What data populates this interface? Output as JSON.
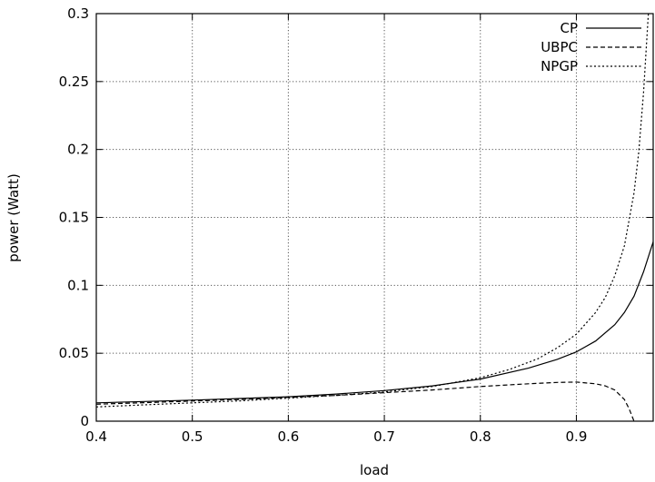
{
  "chart_data": {
    "type": "line",
    "title": "",
    "xlabel": "load",
    "ylabel": "power (Watt)",
    "xlim": [
      0.4,
      0.98
    ],
    "ylim": [
      0,
      0.3
    ],
    "xticks": [
      0.4,
      0.5,
      0.6,
      0.7,
      0.8,
      0.9
    ],
    "xtick_labels": [
      "0.4",
      "0.5",
      "0.6",
      "0.7",
      "0.8",
      "0.9"
    ],
    "yticks": [
      0,
      0.05,
      0.1,
      0.15,
      0.2,
      0.25,
      0.3
    ],
    "ytick_labels": [
      "0",
      "0.05",
      "0.1",
      "0.15",
      "0.2",
      "0.25",
      "0.3"
    ],
    "grid": true,
    "legend_position": "top-right",
    "series": [
      {
        "name": "CP",
        "style": "solid",
        "x": [
          0.4,
          0.45,
          0.5,
          0.55,
          0.6,
          0.65,
          0.7,
          0.75,
          0.8,
          0.85,
          0.88,
          0.9,
          0.92,
          0.94,
          0.95,
          0.96,
          0.97,
          0.98
        ],
        "y": [
          0.0135,
          0.0145,
          0.0155,
          0.0167,
          0.018,
          0.02,
          0.0225,
          0.026,
          0.031,
          0.039,
          0.0455,
          0.051,
          0.059,
          0.071,
          0.08,
          0.092,
          0.11,
          0.132
        ]
      },
      {
        "name": "UBPC",
        "style": "dashed",
        "x": [
          0.4,
          0.45,
          0.5,
          0.55,
          0.6,
          0.65,
          0.7,
          0.75,
          0.8,
          0.85,
          0.88,
          0.9,
          0.92,
          0.93,
          0.94,
          0.95,
          0.955,
          0.96
        ],
        "y": [
          0.0125,
          0.0136,
          0.0148,
          0.016,
          0.0175,
          0.019,
          0.021,
          0.023,
          0.0255,
          0.0275,
          0.0285,
          0.0288,
          0.0275,
          0.026,
          0.023,
          0.016,
          0.009,
          0.0
        ]
      },
      {
        "name": "NPGP",
        "style": "dotted",
        "x": [
          0.4,
          0.45,
          0.5,
          0.55,
          0.6,
          0.65,
          0.7,
          0.75,
          0.8,
          0.83,
          0.86,
          0.88,
          0.9,
          0.92,
          0.93,
          0.94,
          0.95,
          0.96,
          0.965,
          0.97,
          0.975
        ],
        "y": [
          0.0105,
          0.012,
          0.0135,
          0.015,
          0.017,
          0.019,
          0.0215,
          0.0255,
          0.032,
          0.038,
          0.046,
          0.054,
          0.064,
          0.08,
          0.091,
          0.107,
          0.129,
          0.168,
          0.198,
          0.242,
          0.3
        ]
      }
    ]
  }
}
